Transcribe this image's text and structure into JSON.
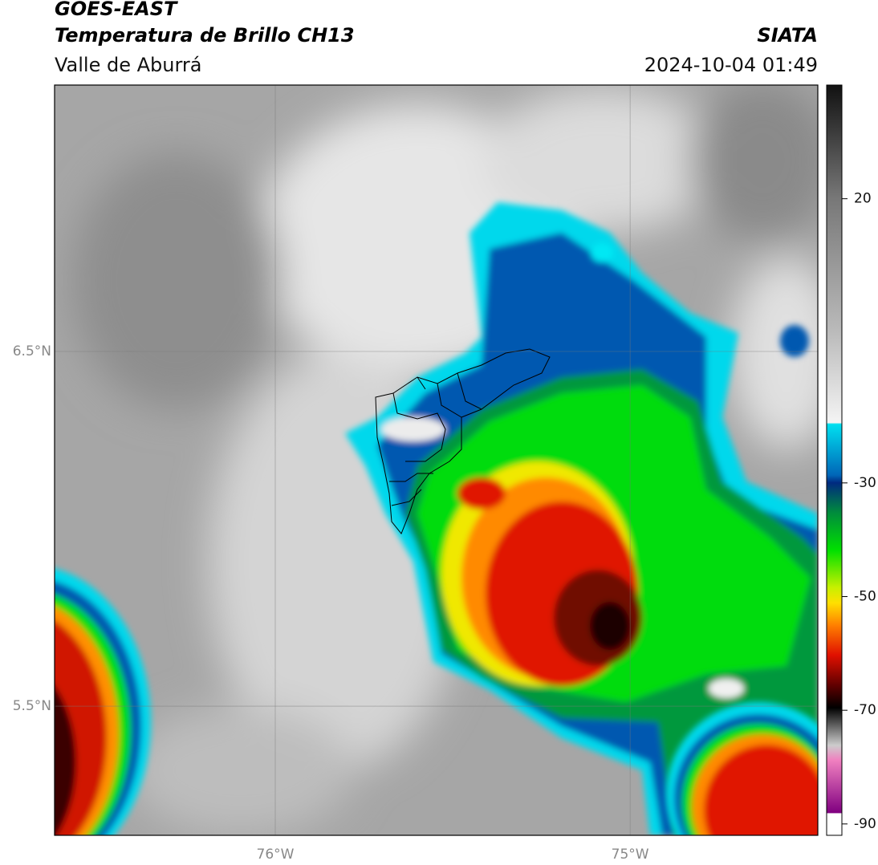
{
  "header": {
    "title": "GOES-EAST",
    "subtitle": "Temperatura de Brillo CH13",
    "region": "Valle de Aburrá",
    "source": "SIATA",
    "datetime": "2024-10-04 01:49"
  },
  "map": {
    "xlim": [
      -76.622,
      -74.471
    ],
    "ylim": [
      5.136,
      7.251
    ],
    "xticks": [
      {
        "value": -76,
        "label": "76°W"
      },
      {
        "value": -75,
        "label": "75°W"
      }
    ],
    "yticks": [
      {
        "value": 6.5,
        "label": "6.5°N"
      },
      {
        "value": 5.5,
        "label": "5.5°N"
      }
    ],
    "grid": true
  },
  "colorbar": {
    "lim": [
      -92,
      40
    ],
    "ticks": [
      20,
      -30,
      -50,
      -70,
      -90
    ]
  }
}
